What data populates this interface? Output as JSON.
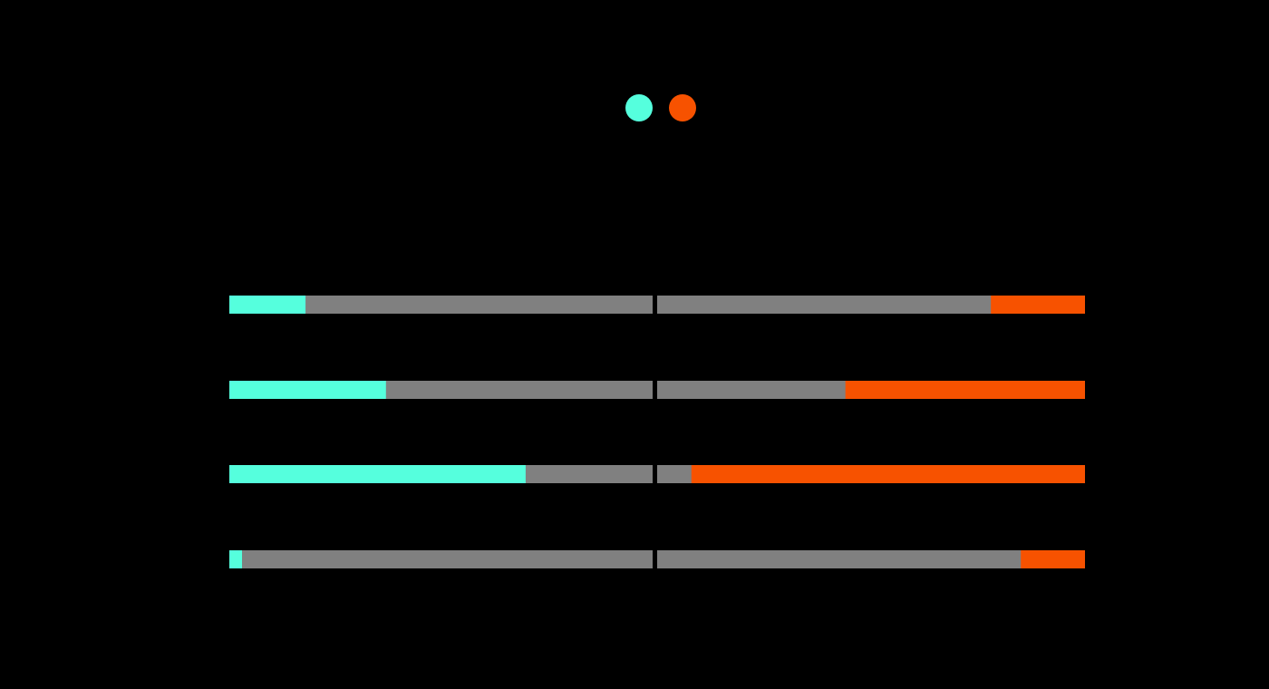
{
  "chart_data": {
    "type": "split-bar",
    "xlim": [
      0,
      100
    ],
    "series": [
      {
        "color": "#55ffdd",
        "values": [
          18,
          37,
          70,
          3
        ]
      },
      {
        "color": "#f75200",
        "values": [
          22,
          56,
          92,
          15
        ]
      }
    ],
    "track_color": "#808080"
  }
}
